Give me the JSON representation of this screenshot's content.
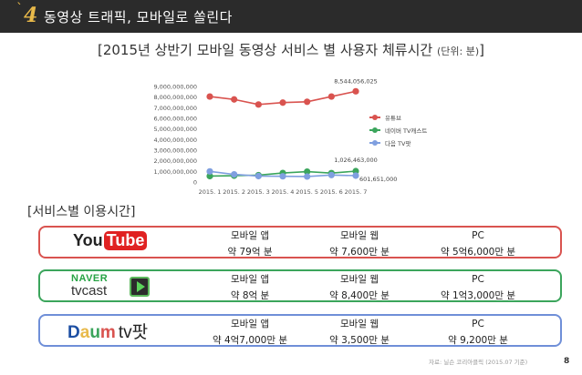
{
  "header": {
    "number": "4",
    "tick": "`",
    "title": "동영상 트래픽, 모바일로 쏠린다"
  },
  "chart_title": {
    "main": "[2015년 상반기 모바일 동영상 서비스 별 사용자 체류시간",
    "unit": "(단위: 분)",
    "close": "]"
  },
  "chart_data": {
    "type": "line",
    "title": "[2015년 상반기 모바일 동영상 서비스 별 사용자 체류시간 (단위: 분)]",
    "x": [
      "2015. 1",
      "2015. 2",
      "2015. 3",
      "2015. 4",
      "2015. 5",
      "2015. 6",
      "2015. 7"
    ],
    "y_ticks": [
      "0",
      "1,000,000,000",
      "2,000,000,000",
      "3,000,000,000",
      "4,000,000,000",
      "5,000,000,000",
      "6,000,000,000",
      "7,000,000,000",
      "8,000,000,000",
      "9,000,000,000"
    ],
    "ylim": [
      0,
      9000000000
    ],
    "grid": false,
    "legend_position": "right",
    "series": [
      {
        "name": "유튜브",
        "color": "#d9534f",
        "values": [
          8050000000,
          7780000000,
          7300000000,
          7480000000,
          7560000000,
          8050000000,
          8544056025
        ]
      },
      {
        "name": "네이버 TV캐스트",
        "color": "#3ba55c",
        "values": [
          560000000,
          600000000,
          650000000,
          850000000,
          980000000,
          840000000,
          1026463000
        ]
      },
      {
        "name": "다음 TV팟",
        "color": "#7f9fdf",
        "values": [
          1000000000,
          720000000,
          560000000,
          540000000,
          520000000,
          660000000,
          601651000
        ]
      }
    ],
    "annotations": [
      "8,544,056,025",
      "1,026,463,000",
      "601,651,000"
    ]
  },
  "section_title": "[서비스별 이용시간]",
  "services": [
    {
      "logo": {
        "you": "You",
        "tube": "Tube"
      },
      "metrics": [
        {
          "label": "모바일 앱",
          "value": "약 79억 분"
        },
        {
          "label": "모바일 웹",
          "value": "약 7,600만 분"
        },
        {
          "label": "PC",
          "value": "약 5억6,000만 분"
        }
      ]
    },
    {
      "logo": {
        "naver": "NAVER",
        "tvcast": "tvcast"
      },
      "metrics": [
        {
          "label": "모바일 앱",
          "value": "약 8억 분"
        },
        {
          "label": "모바일 웹",
          "value": "약 8,400만 분"
        },
        {
          "label": "PC",
          "value": "약 1억3,000만 분"
        }
      ]
    },
    {
      "logo": {
        "d": "D",
        "a": "a",
        "u": "u",
        "m": "m",
        "tv": "tv팟"
      },
      "metrics": [
        {
          "label": "모바일 앱",
          "value": "약 4억7,000만 분"
        },
        {
          "label": "모바일 웹",
          "value": "약 3,500만 분"
        },
        {
          "label": "PC",
          "value": "약 9,200만 분"
        }
      ]
    }
  ],
  "source": "자료: 닐슨 코리아클릭 (2015.07 기준)",
  "page_number": "8"
}
